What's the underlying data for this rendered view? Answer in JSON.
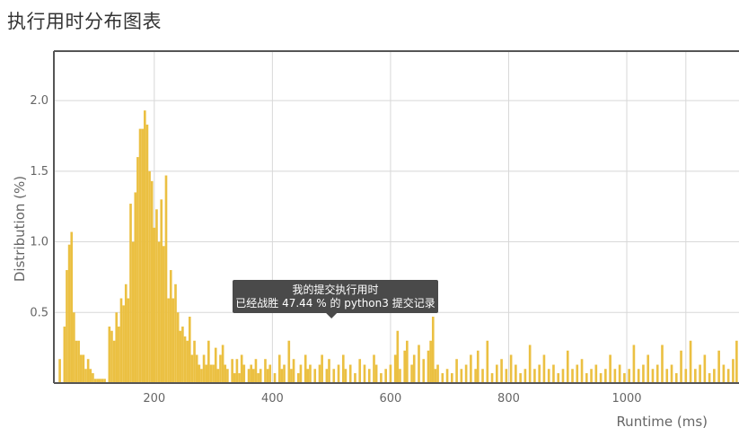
{
  "page": {
    "title": "执行用时分布图表"
  },
  "chart_data": {
    "type": "bar",
    "xlabel": "Runtime (ms)",
    "ylabel": "Distribution (%)",
    "xlim": [
      30,
      1190
    ],
    "ylim": [
      0,
      2.35
    ],
    "xticks": [
      200,
      400,
      600,
      800,
      1000
    ],
    "yticks": [
      0.5,
      1.0,
      1.5,
      2.0
    ],
    "ytick_labels": [
      "0.5",
      "1.0",
      "1.5",
      "2.0"
    ],
    "grid": true,
    "bar_color": "#ebc042",
    "bin_width_ms": 4,
    "series": [
      {
        "values": [
          [
            40,
            0.17
          ],
          [
            48,
            0.4
          ],
          [
            52,
            0.8
          ],
          [
            56,
            0.98
          ],
          [
            60,
            1.07
          ],
          [
            64,
            0.5
          ],
          [
            68,
            0.3
          ],
          [
            72,
            0.3
          ],
          [
            76,
            0.2
          ],
          [
            80,
            0.2
          ],
          [
            84,
            0.1
          ],
          [
            88,
            0.17
          ],
          [
            92,
            0.1
          ],
          [
            96,
            0.07
          ],
          [
            100,
            0.03
          ],
          [
            104,
            0.03
          ],
          [
            108,
            0.03
          ],
          [
            112,
            0.03
          ],
          [
            116,
            0.03
          ],
          [
            124,
            0.4
          ],
          [
            128,
            0.37
          ],
          [
            132,
            0.3
          ],
          [
            136,
            0.5
          ],
          [
            140,
            0.4
          ],
          [
            144,
            0.6
          ],
          [
            148,
            0.55
          ],
          [
            152,
            0.7
          ],
          [
            156,
            0.6
          ],
          [
            160,
            1.27
          ],
          [
            164,
            1.0
          ],
          [
            168,
            1.35
          ],
          [
            172,
            1.6
          ],
          [
            176,
            1.8
          ],
          [
            180,
            1.8
          ],
          [
            184,
            1.93
          ],
          [
            188,
            1.83
          ],
          [
            192,
            1.5
          ],
          [
            196,
            1.43
          ],
          [
            200,
            1.1
          ],
          [
            204,
            1.23
          ],
          [
            208,
            1.0
          ],
          [
            212,
            1.3
          ],
          [
            216,
            0.97
          ],
          [
            220,
            1.47
          ],
          [
            224,
            0.6
          ],
          [
            228,
            0.8
          ],
          [
            232,
            0.6
          ],
          [
            236,
            0.7
          ],
          [
            240,
            0.5
          ],
          [
            244,
            0.37
          ],
          [
            248,
            0.4
          ],
          [
            252,
            0.33
          ],
          [
            256,
            0.3
          ],
          [
            260,
            0.47
          ],
          [
            264,
            0.2
          ],
          [
            268,
            0.3
          ],
          [
            272,
            0.2
          ],
          [
            276,
            0.13
          ],
          [
            280,
            0.1
          ],
          [
            284,
            0.2
          ],
          [
            288,
            0.13
          ],
          [
            292,
            0.3
          ],
          [
            296,
            0.13
          ],
          [
            300,
            0.13
          ],
          [
            304,
            0.25
          ],
          [
            308,
            0.1
          ],
          [
            312,
            0.2
          ],
          [
            316,
            0.27
          ],
          [
            320,
            0.13
          ],
          [
            324,
            0.1
          ],
          [
            332,
            0.17
          ],
          [
            336,
            0.07
          ],
          [
            340,
            0.17
          ],
          [
            344,
            0.07
          ],
          [
            348,
            0.2
          ],
          [
            352,
            0.13
          ],
          [
            360,
            0.1
          ],
          [
            364,
            0.13
          ],
          [
            368,
            0.1
          ],
          [
            372,
            0.17
          ],
          [
            376,
            0.07
          ],
          [
            380,
            0.1
          ],
          [
            388,
            0.17
          ],
          [
            392,
            0.1
          ],
          [
            396,
            0.13
          ],
          [
            404,
            0.07
          ],
          [
            412,
            0.2
          ],
          [
            416,
            0.1
          ],
          [
            420,
            0.13
          ],
          [
            428,
            0.3
          ],
          [
            432,
            0.1
          ],
          [
            436,
            0.17
          ],
          [
            444,
            0.07
          ],
          [
            448,
            0.13
          ],
          [
            456,
            0.2
          ],
          [
            460,
            0.1
          ],
          [
            464,
            0.13
          ],
          [
            472,
            0.1
          ],
          [
            480,
            0.13
          ],
          [
            484,
            0.2
          ],
          [
            492,
            0.1
          ],
          [
            496,
            0.17
          ],
          [
            504,
            0.1
          ],
          [
            512,
            0.13
          ],
          [
            520,
            0.2
          ],
          [
            524,
            0.1
          ],
          [
            532,
            0.13
          ],
          [
            540,
            0.07
          ],
          [
            548,
            0.17
          ],
          [
            556,
            0.13
          ],
          [
            564,
            0.1
          ],
          [
            572,
            0.2
          ],
          [
            576,
            0.13
          ],
          [
            584,
            0.07
          ],
          [
            592,
            0.1
          ],
          [
            600,
            0.13
          ],
          [
            608,
            0.2
          ],
          [
            612,
            0.37
          ],
          [
            616,
            0.1
          ],
          [
            624,
            0.23
          ],
          [
            628,
            0.3
          ],
          [
            636,
            0.13
          ],
          [
            640,
            0.2
          ],
          [
            648,
            0.27
          ],
          [
            656,
            0.17
          ],
          [
            664,
            0.23
          ],
          [
            668,
            0.3
          ],
          [
            672,
            0.47
          ],
          [
            676,
            0.1
          ],
          [
            680,
            0.13
          ],
          [
            688,
            0.07
          ],
          [
            696,
            0.1
          ],
          [
            704,
            0.07
          ],
          [
            712,
            0.17
          ],
          [
            720,
            0.1
          ],
          [
            728,
            0.13
          ],
          [
            736,
            0.2
          ],
          [
            744,
            0.1
          ],
          [
            748,
            0.23
          ],
          [
            756,
            0.1
          ],
          [
            764,
            0.3
          ],
          [
            772,
            0.07
          ],
          [
            780,
            0.13
          ],
          [
            788,
            0.17
          ],
          [
            796,
            0.1
          ],
          [
            804,
            0.2
          ],
          [
            812,
            0.13
          ],
          [
            820,
            0.07
          ],
          [
            828,
            0.1
          ],
          [
            836,
            0.27
          ],
          [
            844,
            0.1
          ],
          [
            852,
            0.13
          ],
          [
            860,
            0.2
          ],
          [
            868,
            0.1
          ],
          [
            876,
            0.13
          ],
          [
            884,
            0.07
          ],
          [
            892,
            0.1
          ],
          [
            900,
            0.23
          ],
          [
            908,
            0.1
          ],
          [
            916,
            0.13
          ],
          [
            924,
            0.17
          ],
          [
            932,
            0.07
          ],
          [
            940,
            0.1
          ],
          [
            948,
            0.13
          ],
          [
            956,
            0.07
          ],
          [
            964,
            0.1
          ],
          [
            972,
            0.2
          ],
          [
            980,
            0.1
          ],
          [
            988,
            0.13
          ],
          [
            996,
            0.07
          ],
          [
            1004,
            0.1
          ],
          [
            1012,
            0.27
          ],
          [
            1020,
            0.1
          ],
          [
            1028,
            0.13
          ],
          [
            1036,
            0.2
          ],
          [
            1044,
            0.1
          ],
          [
            1052,
            0.13
          ],
          [
            1060,
            0.27
          ],
          [
            1068,
            0.1
          ],
          [
            1076,
            0.13
          ],
          [
            1084,
            0.07
          ],
          [
            1092,
            0.23
          ],
          [
            1100,
            0.1
          ],
          [
            1108,
            0.3
          ],
          [
            1116,
            0.1
          ],
          [
            1124,
            0.13
          ],
          [
            1132,
            0.2
          ],
          [
            1140,
            0.07
          ],
          [
            1148,
            0.1
          ],
          [
            1156,
            0.23
          ],
          [
            1164,
            0.13
          ],
          [
            1172,
            0.1
          ],
          [
            1180,
            0.17
          ],
          [
            1186,
            0.3
          ]
        ]
      }
    ],
    "annotation": {
      "x": 500,
      "line1": "我的提交执行用时",
      "line2": "已经战胜 47.44 % 的 python3 提交记录"
    }
  }
}
